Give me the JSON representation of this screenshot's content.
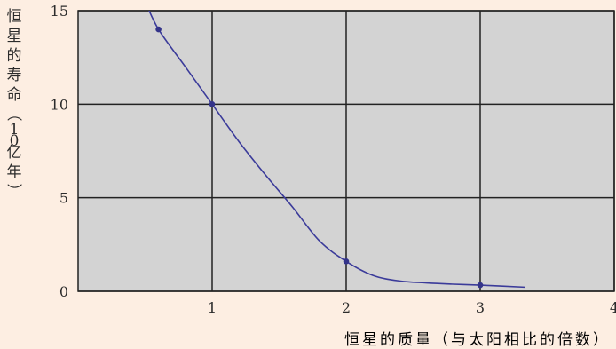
{
  "chart_data": {
    "type": "line",
    "title": "",
    "xlabel": "恒星的质量（与太阳相比的倍数）",
    "ylabel": "恒星的寿命（10亿年）",
    "xlim": [
      0,
      4
    ],
    "ylim": [
      0,
      15
    ],
    "xticks": [
      1,
      2,
      3,
      4
    ],
    "yticks": [
      0,
      5,
      10,
      15
    ],
    "grid": true,
    "series": [
      {
        "curve": [
          [
            0.5,
            15.5
          ],
          [
            0.6,
            14
          ],
          [
            0.8,
            12
          ],
          [
            1,
            10
          ],
          [
            1.2,
            8
          ],
          [
            1.4,
            6.2
          ],
          [
            1.6,
            4.5
          ],
          [
            1.8,
            2.7
          ],
          [
            2,
            1.6
          ],
          [
            2.2,
            0.85
          ],
          [
            2.4,
            0.55
          ],
          [
            2.6,
            0.45
          ],
          [
            2.8,
            0.38
          ],
          [
            3,
            0.33
          ],
          [
            3.33,
            0.22
          ]
        ],
        "points": [
          [
            0.6,
            14
          ],
          [
            1,
            10
          ],
          [
            2,
            1.6
          ],
          [
            3,
            0.33
          ]
        ]
      }
    ]
  },
  "colors": {
    "page_background": "#fdeee2",
    "plot_background": "#d3d3d3",
    "grid": "#222222",
    "line": "#3b3b9a",
    "marker": "#34348a"
  }
}
